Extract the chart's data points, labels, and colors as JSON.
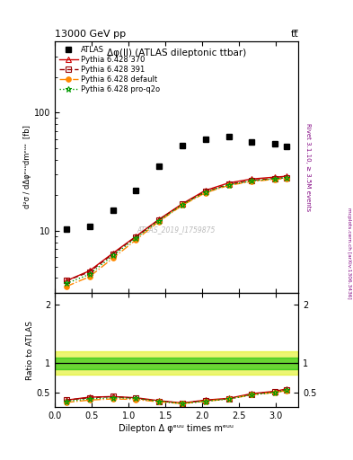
{
  "title_top": "13000 GeV pp",
  "title_top_right": "tt̅",
  "plot_title": "Δφ(ll) (ATLAS dileptonic ttbar)",
  "xlabel": "Dilepton Δ φᵉᵘᵘ times mᵉᵘᵘ",
  "ylabel": "d²σ / dΔφᵉᵘᵘdmᵉᵘᵘ  [fb]",
  "ylabel_right1": "Rivet 3.1.10, ≥ 3.5M events",
  "ylabel_right2": "mcplots.cern.ch [arXiv:1306.3436]",
  "watermark": "ATLAS_2019_I1759875",
  "ratio_ylabel": "Ratio to ATLAS",
  "xdata": [
    0.16,
    0.47,
    0.79,
    1.1,
    1.41,
    1.73,
    2.04,
    2.36,
    2.67,
    2.98,
    3.14
  ],
  "atlas_y": [
    10.3,
    11.0,
    15.0,
    22.0,
    35.0,
    53.0,
    60.0,
    63.0,
    57.0,
    55.0,
    52.0
  ],
  "py370_y": [
    3.8,
    4.6,
    6.5,
    9.0,
    12.5,
    17.0,
    22.0,
    25.5,
    27.5,
    28.5,
    29.0
  ],
  "py391_y": [
    3.8,
    4.5,
    6.4,
    8.9,
    12.4,
    16.8,
    21.5,
    24.8,
    26.8,
    27.8,
    28.3
  ],
  "pydef_y": [
    3.4,
    4.1,
    5.9,
    8.4,
    12.0,
    16.5,
    21.0,
    24.3,
    26.2,
    27.3,
    27.8
  ],
  "pyq2o_y": [
    3.6,
    4.3,
    6.2,
    8.7,
    12.2,
    16.7,
    21.3,
    24.6,
    26.5,
    27.6,
    28.1
  ],
  "ratio_py370": [
    0.37,
    0.42,
    0.43,
    0.41,
    0.36,
    0.32,
    0.37,
    0.4,
    0.48,
    0.52,
    0.56
  ],
  "ratio_py391": [
    0.37,
    0.41,
    0.43,
    0.4,
    0.35,
    0.32,
    0.36,
    0.39,
    0.47,
    0.51,
    0.54
  ],
  "ratio_pydef": [
    0.33,
    0.37,
    0.39,
    0.38,
    0.34,
    0.31,
    0.35,
    0.39,
    0.46,
    0.5,
    0.53
  ],
  "ratio_pyq2o": [
    0.35,
    0.39,
    0.41,
    0.4,
    0.35,
    0.31,
    0.35,
    0.39,
    0.46,
    0.5,
    0.54
  ],
  "color_370": "#cc0000",
  "color_391": "#990000",
  "color_def": "#ff8800",
  "color_q2o": "#009900",
  "band_green_color": "#00bb00",
  "band_yellow_color": "#ddee00",
  "xlim": [
    0,
    3.3
  ],
  "ylim_main": [
    3.0,
    400.0
  ],
  "ylim_ratio": [
    0.25,
    2.2
  ],
  "ratio_yticks": [
    0.5,
    1.0,
    2.0
  ]
}
